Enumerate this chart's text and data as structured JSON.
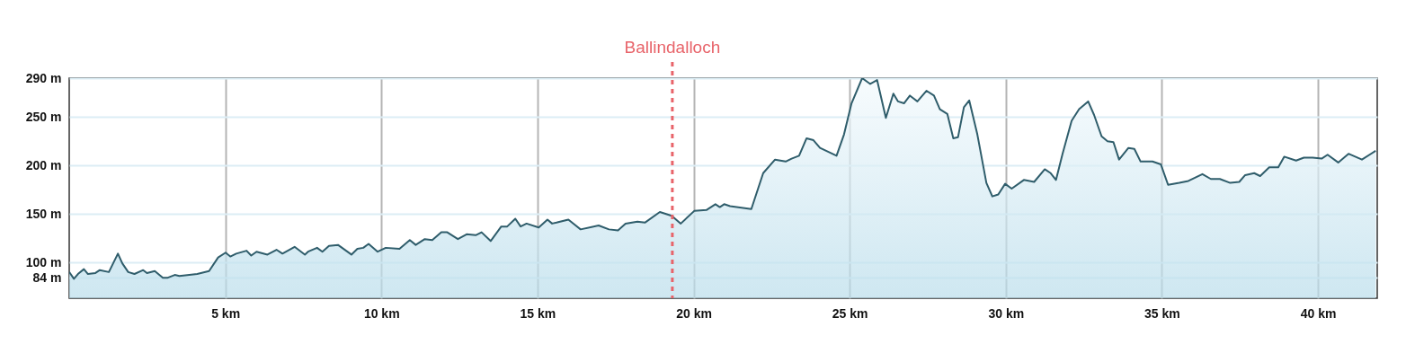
{
  "chart_data": {
    "type": "area",
    "x": [
      0,
      0.15,
      0.28,
      0.47,
      0.6,
      0.84,
      0.98,
      1.27,
      1.56,
      1.7,
      1.89,
      2.09,
      2.37,
      2.49,
      2.74,
      3,
      3.14,
      3.38,
      3.53,
      4.1,
      4.48,
      4.77,
      5.01,
      5.16,
      5.35,
      5.68,
      5.83,
      6,
      6.35,
      6.64,
      6.83,
      7.22,
      7.55,
      7.65,
      7.94,
      8.11,
      8.32,
      8.61,
      9.04,
      9.23,
      9.42,
      9.59,
      9.88,
      10.14,
      10.58,
      10.91,
      11.1,
      11.39,
      11.63,
      11.92,
      12.11,
      12.45,
      12.73,
      13.02,
      13.21,
      13.5,
      13.84,
      14.03,
      14.29,
      14.46,
      14.65,
      15.04,
      15.32,
      15.47,
      15.61,
      15.99,
      16.38,
      16.96,
      17.29,
      17.58,
      17.82,
      18.2,
      18.44,
      18.92,
      19.3,
      19.59,
      20.02,
      20.41,
      20.7,
      20.84,
      20.98,
      21.17,
      21.85,
      22.23,
      22.61,
      22.95,
      23.14,
      23.38,
      23.62,
      23.84,
      24.05,
      24.58,
      24.82,
      25.06,
      25.4,
      25.66,
      25.88,
      26.16,
      26.4,
      26.55,
      26.74,
      26.93,
      27.17,
      27.46,
      27.7,
      27.89,
      28.13,
      28.32,
      28.47,
      28.66,
      28.83,
      29.09,
      29.38,
      29.57,
      29.76,
      29.98,
      30.19,
      30.58,
      30.91,
      31.25,
      31.44,
      31.61,
      31.82,
      32.11,
      32.35,
      32.64,
      32.83,
      33.07,
      33.26,
      33.45,
      33.63,
      33.93,
      34.12,
      34.32,
      34.7,
      34.97,
      35.2,
      35.56,
      35.85,
      36.3,
      36.57,
      36.86,
      37.19,
      37.48,
      37.67,
      37.96,
      38.15,
      38.44,
      38.73,
      38.92,
      39.3,
      39.55,
      39.83,
      40.12,
      40.31,
      40.65,
      40.98,
      41.41,
      41.85
    ],
    "series": [
      {
        "color": "#a9d5e6",
        "values": [
          90,
          83,
          88,
          93,
          88,
          89,
          92,
          90,
          109,
          99,
          90,
          88,
          92,
          89,
          91,
          84,
          84,
          87,
          86,
          88,
          91,
          105,
          110,
          106,
          109,
          112,
          107,
          111,
          108,
          113,
          109,
          116,
          108,
          111,
          115,
          111,
          117,
          118,
          108,
          114,
          115,
          119,
          111,
          115,
          114,
          123,
          118,
          124,
          123,
          131,
          131,
          124,
          129,
          128,
          131,
          122,
          137,
          137,
          145,
          137,
          140,
          136,
          144,
          140,
          141,
          144,
          134,
          138,
          134,
          133,
          140,
          142,
          141,
          152,
          148,
          140,
          153,
          154,
          160,
          157,
          160,
          158,
          155,
          192,
          206,
          204,
          207,
          210,
          228,
          226,
          218,
          210,
          232,
          264,
          290,
          284,
          288,
          249,
          274,
          266,
          264,
          272,
          266,
          277,
          272,
          258,
          253,
          228,
          229,
          260,
          267,
          232,
          182,
          168,
          170,
          181,
          176,
          185,
          183,
          196,
          192,
          185,
          212,
          246,
          258,
          266,
          252,
          230,
          225,
          224,
          206,
          218,
          217,
          204,
          204,
          201,
          180,
          182,
          184,
          191,
          186,
          186,
          182,
          183,
          190,
          192,
          189,
          198,
          198,
          209,
          205,
          208,
          208,
          207,
          211,
          203,
          212,
          206,
          215
        ]
      }
    ],
    "xlim": [
      0,
      41.9
    ],
    "ylim": [
      63,
      290
    ],
    "xticks": [
      {
        "value": 5,
        "label": "5 km"
      },
      {
        "value": 10,
        "label": "10 km"
      },
      {
        "value": 15,
        "label": "15 km"
      },
      {
        "value": 20,
        "label": "20 km"
      },
      {
        "value": 25,
        "label": "25 km"
      },
      {
        "value": 30,
        "label": "30 km"
      },
      {
        "value": 35,
        "label": "35 km"
      },
      {
        "value": 40,
        "label": "40 km"
      }
    ],
    "yticks": [
      {
        "value": 84,
        "label": "84 m"
      },
      {
        "value": 100,
        "label": "100 m"
      },
      {
        "value": 150,
        "label": "150 m"
      },
      {
        "value": 200,
        "label": "200 m"
      },
      {
        "value": 250,
        "label": "250 m"
      },
      {
        "value": 290,
        "label": "290 m"
      }
    ],
    "grid": true,
    "ref_lines": [
      {
        "axis": "x",
        "value": 19.32,
        "label": "Ballindalloch",
        "color": "#e8646a",
        "line_style": "dashed"
      }
    ]
  }
}
